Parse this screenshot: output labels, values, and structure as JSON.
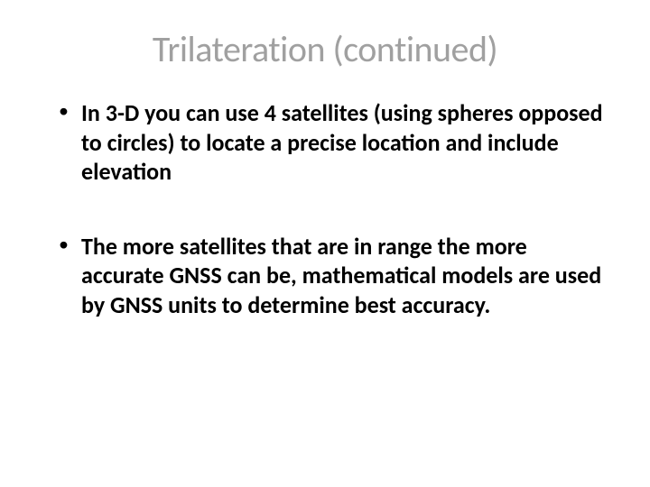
{
  "slide": {
    "title": "Trilateration (continued)",
    "title_color": "#a0a0a0",
    "title_fontsize": 40,
    "title_weight": 400,
    "bullets": [
      {
        "text": "In 3-D you can use 4 satellites (using spheres opposed to circles) to locate a precise location and include elevation"
      },
      {
        "text": "The more satellites that are in range the more accurate GNSS can be, mathematical models are used by GNSS units to determine best accuracy."
      }
    ],
    "bullet_color": "#000000",
    "bullet_fontsize": 26,
    "bullet_weight": 700,
    "background_color": "#ffffff"
  }
}
